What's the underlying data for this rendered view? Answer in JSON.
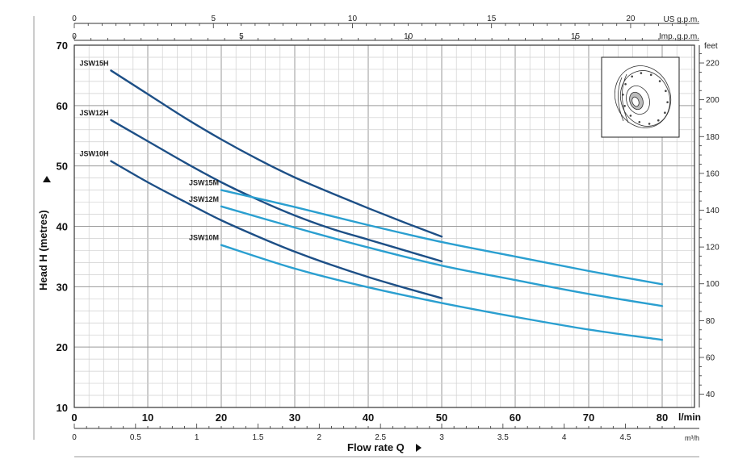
{
  "chart_data": {
    "type": "line",
    "xlabel": "Flow rate Q",
    "ylabel": "Head H (metres)",
    "x_unit": "l/min",
    "xlim": [
      0,
      80
    ],
    "ylim": [
      10,
      70
    ],
    "grid": true,
    "x_ticks": [
      "0",
      "10",
      "20",
      "30",
      "40",
      "50",
      "60",
      "70",
      "80"
    ],
    "y_ticks": [
      "10",
      "20",
      "30",
      "40",
      "50",
      "60",
      "70"
    ],
    "feet_axis": {
      "label": "feet",
      "ticks": [
        "40",
        "60",
        "80",
        "100",
        "120",
        "140",
        "160",
        "180",
        "200",
        "220"
      ],
      "values": [
        40,
        60,
        80,
        100,
        120,
        140,
        160,
        180,
        200,
        220
      ]
    },
    "us_gpm_axis": {
      "label": "US g.p.m.",
      "ticks": [
        "0",
        "5",
        "10",
        "15",
        "20"
      ],
      "values": [
        0,
        5,
        10,
        15,
        20
      ]
    },
    "imp_gpm_axis": {
      "label": "Imp. g.p.m.",
      "ticks": [
        "0",
        "5",
        "10",
        "15"
      ],
      "values": [
        0,
        5,
        10,
        15
      ]
    },
    "m3h_axis": {
      "label": "m³/h",
      "ticks": [
        "0",
        "0.5",
        "1",
        "1.5",
        "2",
        "2.5",
        "3",
        "3.5",
        "4",
        "4.5"
      ],
      "values": [
        0,
        0.5,
        1,
        1.5,
        2,
        2.5,
        3,
        3.5,
        4,
        4.5
      ]
    },
    "series": [
      {
        "name": "JSW15H",
        "color": "#1d4f86",
        "x": [
          5,
          10,
          15,
          20,
          25,
          30,
          35,
          40,
          45,
          50
        ],
        "y": [
          65.8,
          61.9,
          58.0,
          54.4,
          51.1,
          48.1,
          45.5,
          43.0,
          40.6,
          38.3
        ]
      },
      {
        "name": "JSW12H",
        "color": "#1d4f86",
        "x": [
          5,
          10,
          15,
          20,
          25,
          30,
          35,
          40,
          45,
          50
        ],
        "y": [
          57.6,
          54.1,
          50.6,
          47.3,
          44.4,
          41.8,
          39.6,
          37.8,
          36.0,
          34.2
        ]
      },
      {
        "name": "JSW10H",
        "color": "#1d4f86",
        "x": [
          5,
          10,
          15,
          20,
          25,
          30,
          35,
          40,
          45,
          50
        ],
        "y": [
          50.8,
          47.3,
          44.1,
          41.0,
          38.3,
          35.8,
          33.6,
          31.6,
          29.8,
          28.1
        ]
      },
      {
        "name": "JSW15M",
        "color": "#2a9fd0",
        "x": [
          20,
          30,
          40,
          50,
          60,
          70,
          80
        ],
        "y": [
          46.0,
          43.2,
          40.2,
          37.4,
          35.0,
          32.6,
          30.4
        ]
      },
      {
        "name": "JSW12M",
        "color": "#2a9fd0",
        "x": [
          20,
          30,
          40,
          50,
          60,
          70,
          80
        ],
        "y": [
          43.3,
          39.8,
          36.5,
          33.5,
          31.1,
          28.8,
          26.8
        ]
      },
      {
        "name": "JSW10M",
        "color": "#2a9fd0",
        "x": [
          20,
          30,
          40,
          50,
          60,
          70,
          80
        ],
        "y": [
          36.9,
          33.0,
          29.9,
          27.3,
          25.0,
          22.9,
          21.2
        ]
      }
    ]
  }
}
